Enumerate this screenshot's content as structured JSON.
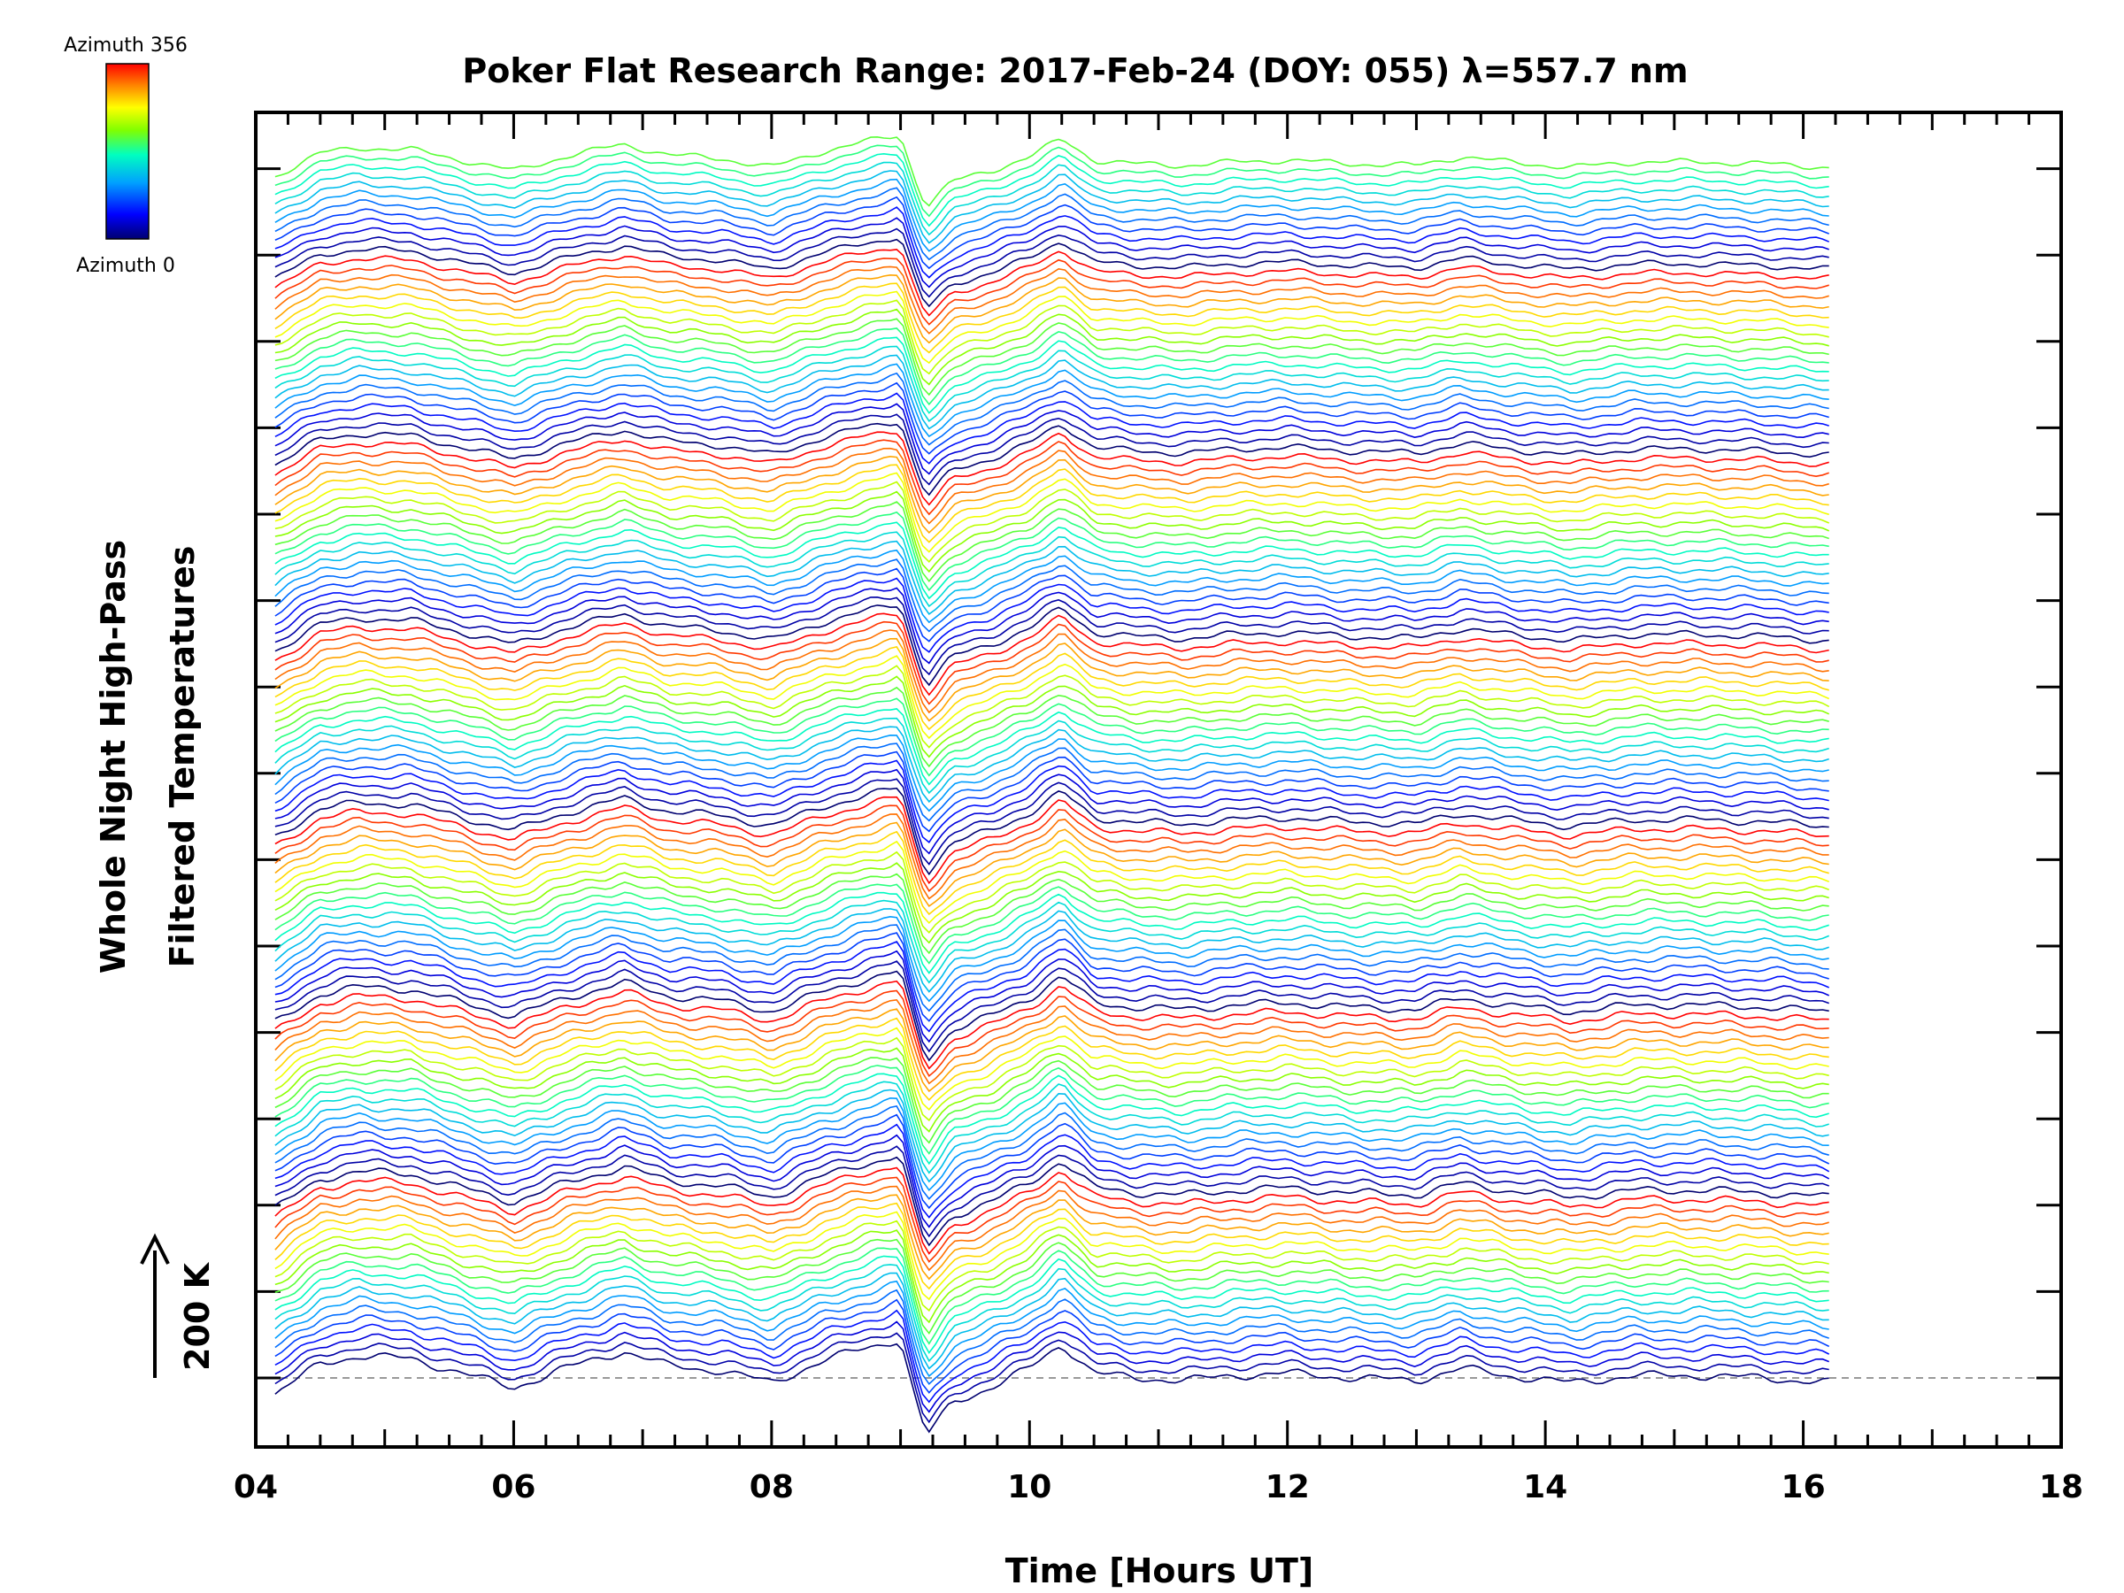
{
  "chart_data": {
    "type": "line",
    "title": "Poker Flat Research Range: 2017-Feb-24 (DOY: 055) λ=557.7 nm",
    "xlabel": "Time [Hours UT]",
    "ylabel_line1": "Whole Night High-Pass",
    "ylabel_line2": "Filtered Temperatures",
    "scale_bar_label": "200 K",
    "colorbar": {
      "top_label": "Azimuth 356",
      "bottom_label": "Azimuth 0",
      "colors": [
        "#000070",
        "#0000ff",
        "#00a0ff",
        "#00ffc0",
        "#80ff00",
        "#ffff00",
        "#ff8000",
        "#ff0000"
      ]
    },
    "xlim": [
      4,
      18
    ],
    "x_ticks": [
      "04",
      "06",
      "08",
      "10",
      "12",
      "14",
      "16",
      "18"
    ],
    "x_tick_values": [
      4,
      6,
      8,
      10,
      12,
      14,
      16,
      18
    ],
    "data_x_range": [
      4.15,
      16.2
    ],
    "baseline_dashed": true,
    "n_series": 132,
    "series_per_block": 20,
    "azimuth_range": [
      0,
      356
    ],
    "common_profile": {
      "x": [
        4.15,
        4.5,
        4.8,
        5.2,
        5.6,
        6.0,
        6.4,
        6.85,
        7.2,
        7.6,
        8.0,
        8.4,
        8.7,
        9.0,
        9.1,
        9.2,
        9.4,
        9.7,
        10.0,
        10.25,
        10.5,
        10.8,
        11.2,
        11.6,
        12.0,
        12.5,
        13.0,
        13.35,
        13.7,
        14.2,
        14.7,
        15.2,
        15.7,
        16.2
      ],
      "y": [
        -35,
        30,
        45,
        40,
        10,
        -20,
        20,
        55,
        25,
        15,
        -10,
        35,
        60,
        80,
        -30,
        -120,
        -50,
        -20,
        20,
        70,
        10,
        0,
        -5,
        5,
        10,
        0,
        -5,
        20,
        5,
        -10,
        5,
        5,
        0,
        -10
      ]
    }
  }
}
